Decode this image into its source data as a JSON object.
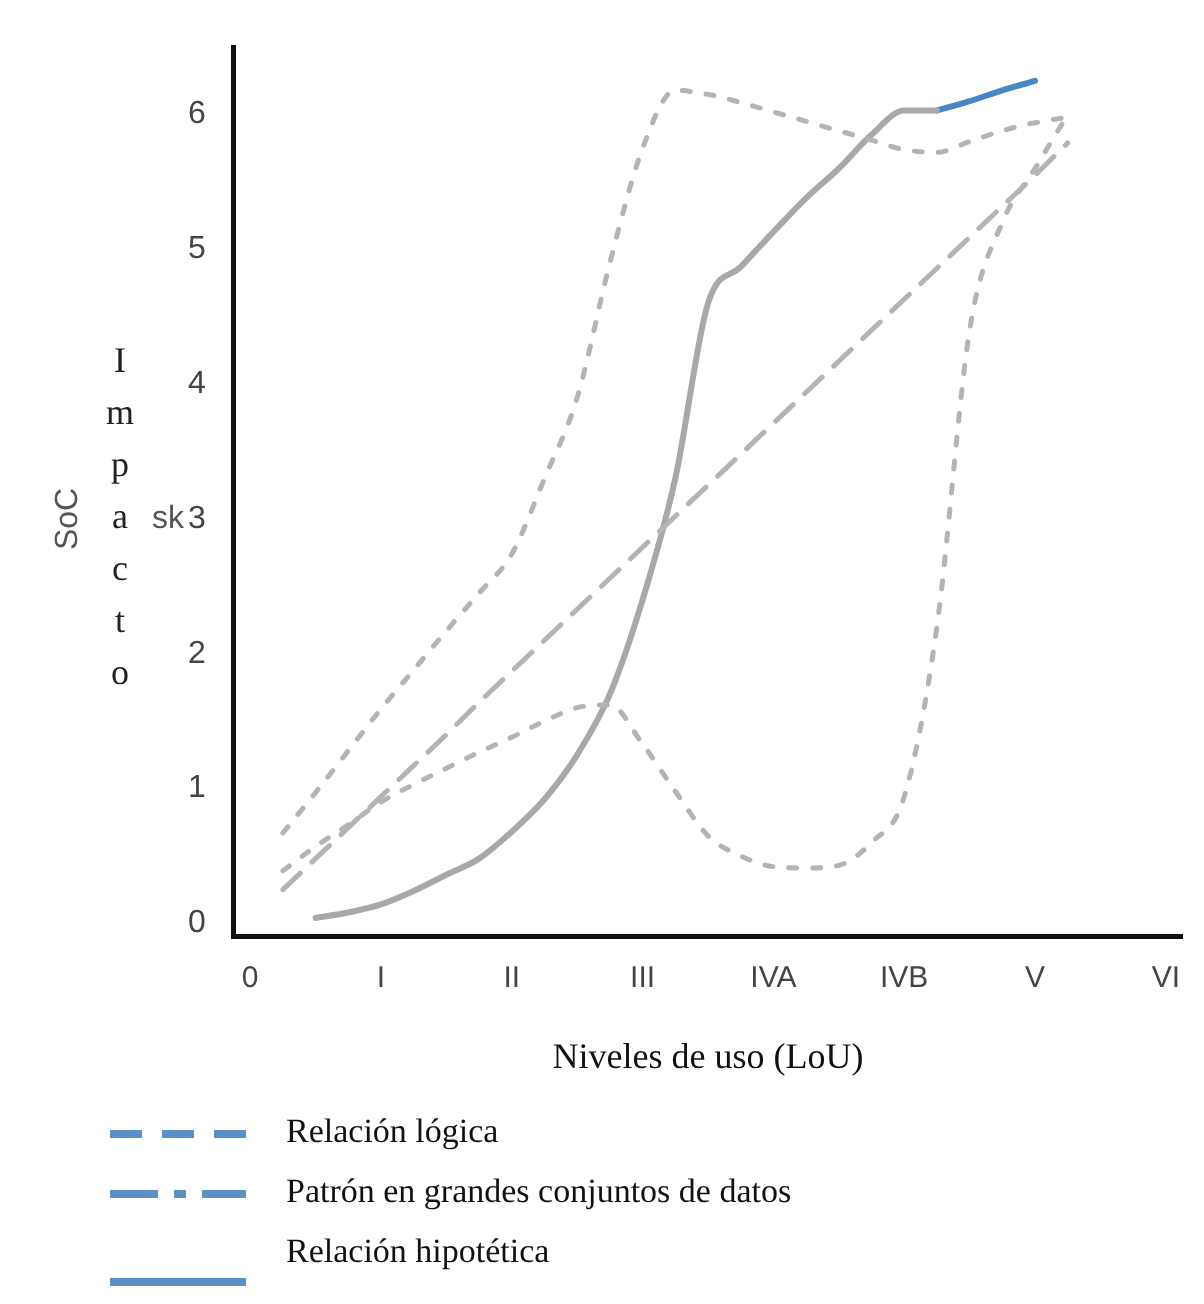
{
  "chart_data": {
    "type": "line",
    "xlabel": "Niveles de uso (LoU)",
    "ylabel": "Impacto",
    "annotations": [
      "SoC",
      "sk",
      "Relación lógica",
      "Patrón en grandes conjuntos de datos",
      "Relación hipotética"
    ],
    "categories": [
      "0",
      null,
      null,
      null,
      "I",
      null,
      null,
      null,
      "II",
      null,
      null,
      null,
      "III",
      null,
      null,
      null,
      "IVA",
      null,
      null,
      null,
      "IVB",
      null,
      null,
      null,
      "V",
      null,
      null,
      null,
      "VI"
    ],
    "ylim": [
      -0.1,
      6.5
    ],
    "yticks": [
      0,
      1,
      2,
      3,
      4,
      5,
      6
    ],
    "grid": false,
    "legend": false,
    "marker": "none",
    "series": [
      {
        "color": "#b4b4b4",
        "line_style": "dotted",
        "values": [
          null,
          0.67,
          0.97,
          1.28,
          1.59,
          1.88,
          2.17,
          2.45,
          2.74,
          3.3,
          3.9,
          4.9,
          5.75,
          6.18,
          6.15,
          6.09,
          6.02,
          5.95,
          5.88,
          5.81,
          5.74,
          5.72,
          5.8,
          5.88,
          5.94,
          5.98,
          null,
          null,
          null
        ]
      },
      {
        "color": "#b4b4b4",
        "line_style": "dotted",
        "values": [
          null,
          0.39,
          0.57,
          0.73,
          0.9,
          1.03,
          1.15,
          1.27,
          1.38,
          1.5,
          1.6,
          1.62,
          1.33,
          0.98,
          0.65,
          0.5,
          0.42,
          0.41,
          0.43,
          0.6,
          0.94,
          2.2,
          4.4,
          5.2,
          5.6,
          6.0,
          null,
          null,
          null
        ]
      },
      {
        "color": "#b4b4b4",
        "line_style": "dashed",
        "values": [
          null,
          0.25,
          0.48,
          0.71,
          0.94,
          1.17,
          1.4,
          1.64,
          1.87,
          2.1,
          2.33,
          2.56,
          2.79,
          3.02,
          3.25,
          3.48,
          3.71,
          3.94,
          4.17,
          4.4,
          4.63,
          4.86,
          5.09,
          5.32,
          5.55,
          5.79,
          null,
          null,
          null
        ]
      },
      {
        "color": "#a8a8a8",
        "line_style": "solid",
        "values": [
          null,
          null,
          0.04,
          0.08,
          0.14,
          0.24,
          0.36,
          0.48,
          0.68,
          0.92,
          1.25,
          1.7,
          2.4,
          3.3,
          4.6,
          4.87,
          5.13,
          5.38,
          5.6,
          5.85,
          6.03,
          6.03,
          null,
          null,
          null,
          null,
          null,
          null,
          null
        ]
      },
      {
        "color": "#4a86c5",
        "line_style": "solid",
        "values": [
          null,
          null,
          null,
          null,
          null,
          null,
          null,
          null,
          null,
          null,
          null,
          null,
          null,
          null,
          null,
          null,
          null,
          null,
          null,
          null,
          null,
          6.03,
          6.1,
          6.18,
          6.25,
          null,
          null,
          null,
          null
        ]
      }
    ]
  }
}
